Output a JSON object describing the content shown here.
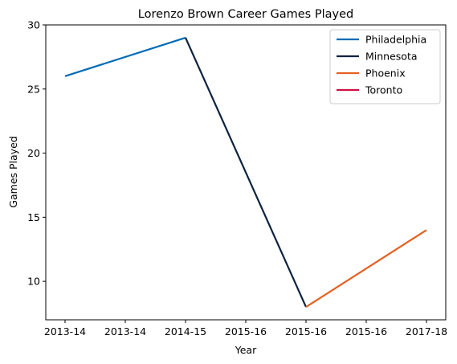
{
  "chart_data": {
    "type": "line",
    "title": "Lorenzo Brown Career Games Played",
    "xlabel": "Year",
    "ylabel": "Games Played",
    "categories": [
      "2013-14",
      "2013-14",
      "2014-15",
      "2015-16",
      "2015-16",
      "2015-16",
      "2017-18"
    ],
    "ylim": [
      7,
      30
    ],
    "yticks": [
      10,
      15,
      20,
      25,
      30
    ],
    "grid": false,
    "legend_position": "top-right",
    "series": [
      {
        "name": "Philadelphia",
        "color": "#006BB6",
        "points": [
          {
            "x": 0,
            "y": 26
          },
          {
            "x": 2,
            "y": 29
          }
        ]
      },
      {
        "name": "Minnesota",
        "color": "#0C2340",
        "points": [
          {
            "x": 2,
            "y": 29
          },
          {
            "x": 4,
            "y": 8
          }
        ]
      },
      {
        "name": "Phoenix",
        "color": "#E56020",
        "points": [
          {
            "x": 4,
            "y": 8
          },
          {
            "x": 6,
            "y": 14
          }
        ]
      },
      {
        "name": "Toronto",
        "color": "#CE1141",
        "points": []
      }
    ]
  }
}
